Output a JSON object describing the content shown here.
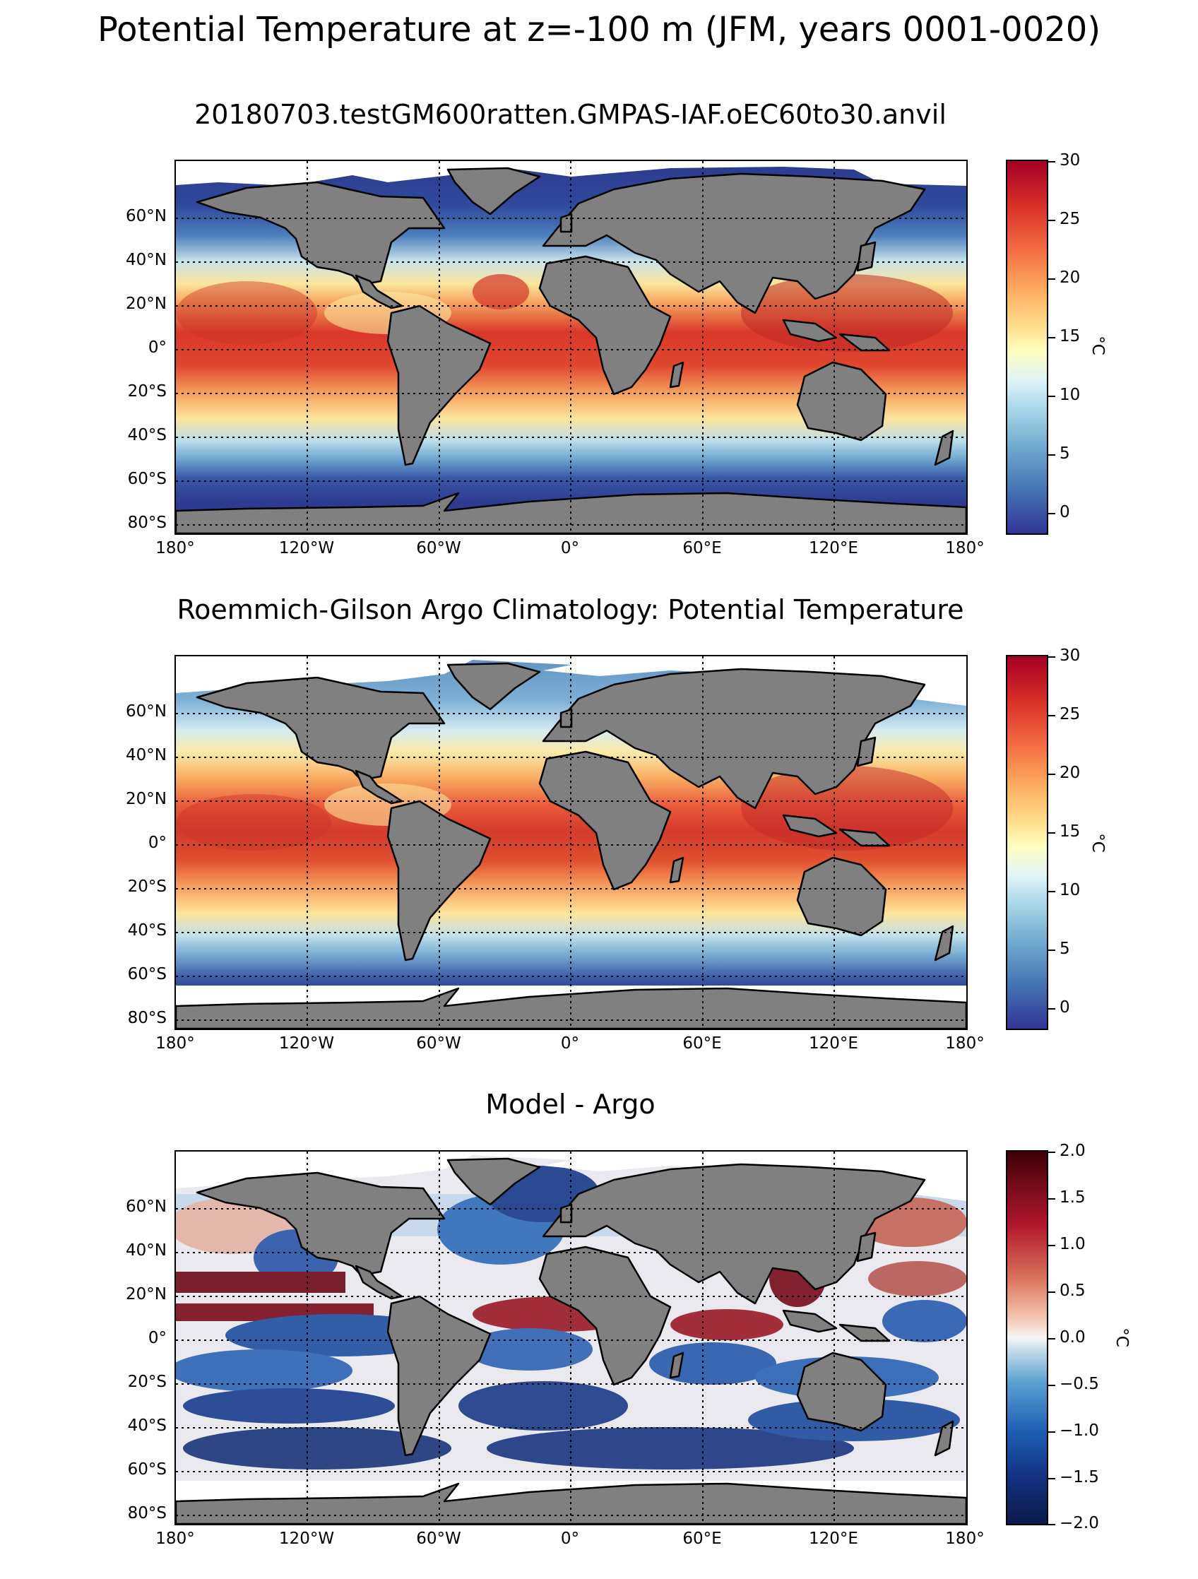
{
  "figure": {
    "title": "Potential Temperature at z=-100 m (JFM, years 0001-0020)"
  },
  "icons": {
    "land_color": "#808080",
    "coastline_color": "#000000",
    "no_data_color": "#ffffff",
    "gridline_style": "dotted black"
  },
  "axes": {
    "lon_labels": [
      "180°",
      "120°W",
      "60°W",
      "0°",
      "60°E",
      "120°E",
      "180°"
    ],
    "lat_labels": [
      "60°N",
      "40°N",
      "20°N",
      "0°",
      "20°S",
      "40°S",
      "60°S",
      "80°S"
    ]
  },
  "panels": [
    {
      "title": "20180703.testGM600ratten.GMPAS-IAF.oEC60to30.anvil",
      "colormap": "RdYlBu_r",
      "colorbar": {
        "label": "°C",
        "ticks": [
          "30",
          "25",
          "20",
          "15",
          "10",
          "5",
          "0"
        ]
      }
    },
    {
      "title": "Roemmich-Gilson Argo Climatology: Potential Temperature",
      "colormap": "RdYlBu_r",
      "colorbar": {
        "label": "°C",
        "ticks": [
          "30",
          "25",
          "20",
          "15",
          "10",
          "5",
          "0"
        ]
      }
    },
    {
      "title": "Model - Argo",
      "colormap": "RdBu_r",
      "colorbar": {
        "label": "°C",
        "ticks": [
          "2.0",
          "1.5",
          "1.0",
          "0.5",
          "0.0",
          "−0.5",
          "−1.0",
          "−1.5",
          "−2.0"
        ]
      }
    }
  ],
  "chart_data": [
    {
      "type": "heatmap",
      "title": "20180703.testGM600ratten.GMPAS-IAF.oEC60to30.anvil",
      "xlabel": "",
      "ylabel": "",
      "xlim": [
        -180,
        180
      ],
      "ylim": [
        -85,
        85
      ],
      "x_ticks": [
        -180,
        -120,
        -60,
        0,
        60,
        120,
        180
      ],
      "y_ticks": [
        60,
        40,
        20,
        0,
        -20,
        -40,
        -60,
        -80
      ],
      "colorbar_range": [
        -2,
        30
      ],
      "colorbar_label": "°C",
      "grid": true
    },
    {
      "type": "heatmap",
      "title": "Roemmich-Gilson Argo Climatology: Potential Temperature",
      "xlabel": "",
      "ylabel": "",
      "xlim": [
        -180,
        180
      ],
      "ylim": [
        -85,
        85
      ],
      "x_ticks": [
        -180,
        -120,
        -60,
        0,
        60,
        120,
        180
      ],
      "y_ticks": [
        60,
        40,
        20,
        0,
        -20,
        -40,
        -60,
        -80
      ],
      "colorbar_range": [
        -2,
        30
      ],
      "colorbar_label": "°C",
      "grid": true
    },
    {
      "type": "heatmap",
      "title": "Model - Argo",
      "xlabel": "",
      "ylabel": "",
      "xlim": [
        -180,
        180
      ],
      "ylim": [
        -85,
        85
      ],
      "x_ticks": [
        -180,
        -120,
        -60,
        0,
        60,
        120,
        180
      ],
      "y_ticks": [
        60,
        40,
        20,
        0,
        -20,
        -40,
        -60,
        -80
      ],
      "colorbar_range": [
        -2,
        2
      ],
      "colorbar_label": "°C",
      "grid": true
    }
  ]
}
